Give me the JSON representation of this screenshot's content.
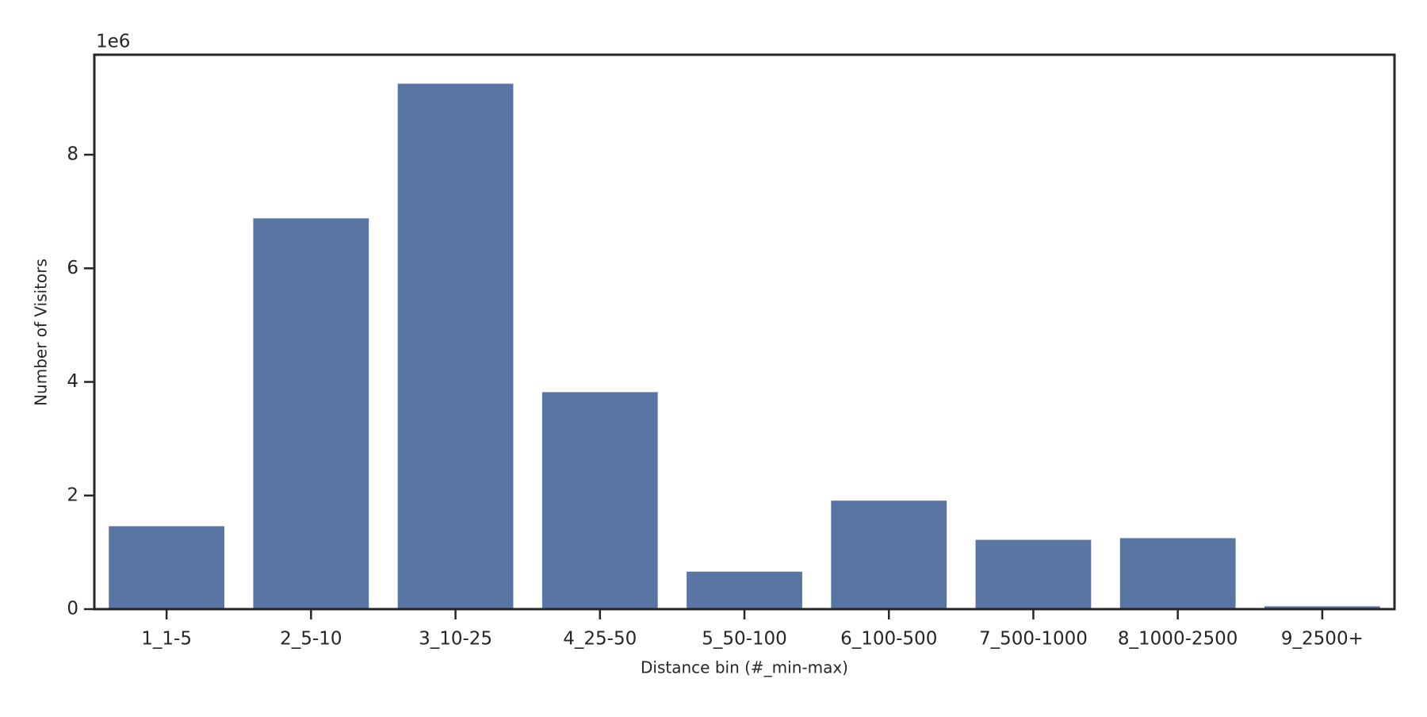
{
  "chart_data": {
    "type": "bar",
    "x_label": "Distance bin (#_min-max)",
    "y_label": "Number of Visitors",
    "y_offset_label": "1e6",
    "categories": [
      "1_1-5",
      "2_5-10",
      "3_10-25",
      "4_25-50",
      "5_50-100",
      "6_100-500",
      "7_500-1000",
      "8_1000-2500",
      "9_2500+"
    ],
    "values": [
      1.46,
      6.88,
      9.25,
      3.82,
      0.66,
      1.91,
      1.22,
      1.25,
      0.05
    ],
    "color": "#5875a4",
    "ylim": [
      0,
      9.76
    ],
    "yticks": [
      0,
      2,
      4,
      6,
      8
    ],
    "grid": false
  }
}
